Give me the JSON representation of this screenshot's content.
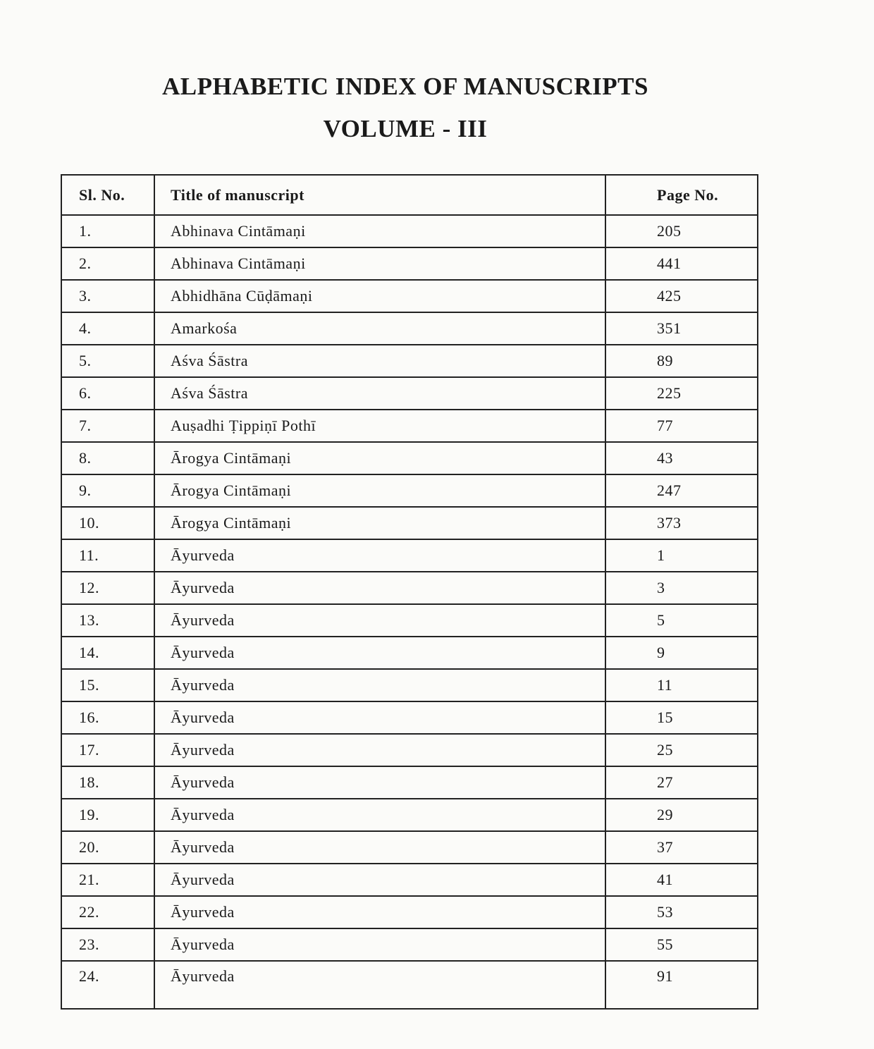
{
  "title": "ALPHABETIC INDEX OF MANUSCRIPTS",
  "subtitle": "VOLUME - III",
  "table": {
    "headers": [
      "Sl. No.",
      "Title of manuscript",
      "Page No."
    ],
    "rows": [
      [
        "1.",
        "Abhinava Cintāmaṇi",
        "205"
      ],
      [
        "2.",
        "Abhinava Cintāmaṇi",
        "441"
      ],
      [
        "3.",
        "Abhidhāna Cūḍāmaṇi",
        "425"
      ],
      [
        "4.",
        "Amarkośa",
        "351"
      ],
      [
        "5.",
        "Aśva Śāstra",
        "89"
      ],
      [
        "6.",
        "Aśva Śāstra",
        "225"
      ],
      [
        "7.",
        "Auṣadhi Ṭippiṇī Pothī",
        "77"
      ],
      [
        "8.",
        "Ārogya Cintāmaṇi",
        "43"
      ],
      [
        "9.",
        "Ārogya Cintāmaṇi",
        "247"
      ],
      [
        "10.",
        "Ārogya Cintāmaṇi",
        "373"
      ],
      [
        "11.",
        "Āyurveda",
        "1"
      ],
      [
        "12.",
        "Āyurveda",
        "3"
      ],
      [
        "13.",
        "Āyurveda",
        "5"
      ],
      [
        "14.",
        "Āyurveda",
        "9"
      ],
      [
        "15.",
        "Āyurveda",
        "11"
      ],
      [
        "16.",
        "Āyurveda",
        "15"
      ],
      [
        "17.",
        "Āyurveda",
        "25"
      ],
      [
        "18.",
        "Āyurveda",
        "27"
      ],
      [
        "19.",
        "Āyurveda",
        "29"
      ],
      [
        "20.",
        "Āyurveda",
        "37"
      ],
      [
        "21.",
        "Āyurveda",
        "41"
      ],
      [
        "22.",
        "Āyurveda",
        "53"
      ],
      [
        "23.",
        "Āyurveda",
        "55"
      ],
      [
        "24.",
        "Āyurveda",
        "91"
      ]
    ]
  }
}
